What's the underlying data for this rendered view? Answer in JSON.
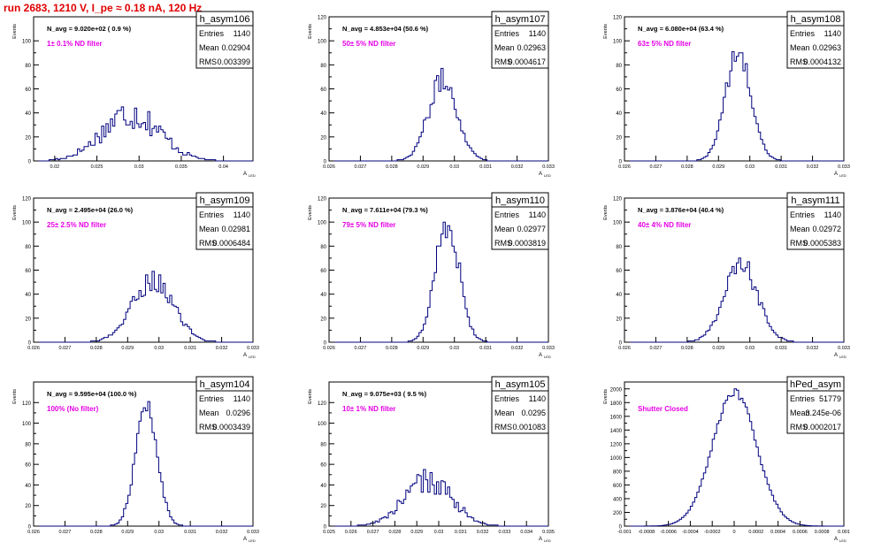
{
  "page": {
    "title": "run 2683,  1210 V, I_pe ≈ 0.18 nA, 120 Hz"
  },
  "stats_labels": {
    "entries": "Entries",
    "mean": "Mean",
    "rms": "RMS"
  },
  "colors": {
    "title": "#e00000",
    "annotation": "#e600e6",
    "histogram": "#00007f",
    "axis": "#000000"
  },
  "chart_data": [
    {
      "type": "histogram",
      "name": "h_asym106",
      "navg": "N_avg = 9.020e+02 ( 0.9 %)",
      "annotation": "1± 0.1% ND filter",
      "ylabel": "Events",
      "xlabel": "A",
      "xlabel_sub": "LED",
      "xlim": [
        0.0175,
        0.0435
      ],
      "ylim": [
        0,
        120
      ],
      "yticks": [
        "0",
        "20",
        "40",
        "60",
        "80",
        "100"
      ],
      "xticks": [
        "0.02",
        "0.025",
        "0.03",
        "0.035",
        "0.04"
      ],
      "ytick_vals": [
        0,
        20,
        40,
        60,
        80,
        100
      ],
      "xtick_vals": [
        0.02,
        0.025,
        0.03,
        0.035,
        0.04
      ],
      "stats": {
        "entries": "1140",
        "mean": "0.02904",
        "rms": "0.003399"
      },
      "mean": 0.02904,
      "rms": 0.003399,
      "peak": 40,
      "entries": 1140,
      "noise": 0.35
    },
    {
      "type": "histogram",
      "name": "h_asym107",
      "navg": "N_avg = 4.853e+04 (50.6 %)",
      "annotation": "50± 5% ND filter",
      "ylabel": "Events",
      "xlabel": "A",
      "xlabel_sub": "LED",
      "xlim": [
        0.026,
        0.033
      ],
      "ylim": [
        0,
        120
      ],
      "yticks": [
        "0",
        "20",
        "40",
        "60",
        "80",
        "100",
        "120"
      ],
      "xticks": [
        "0.026",
        "0.027",
        "0.028",
        "0.029",
        "0.03",
        "0.031",
        "0.032",
        "0.033"
      ],
      "ytick_vals": [
        0,
        20,
        40,
        60,
        80,
        100,
        120
      ],
      "xtick_vals": [
        0.026,
        0.027,
        0.028,
        0.029,
        0.03,
        0.031,
        0.032,
        0.033
      ],
      "stats": {
        "entries": "1140",
        "mean": "0.02963",
        "rms": "0.0004617"
      },
      "mean": 0.02963,
      "rms": 0.0004617,
      "peak": 67,
      "entries": 1140,
      "noise": 0.15
    },
    {
      "type": "histogram",
      "name": "h_asym108",
      "navg": "N_avg = 6.080e+04 (63.4 %)",
      "annotation": "63± 5% ND filter",
      "ylabel": "Events",
      "xlabel": "A",
      "xlabel_sub": "LED",
      "xlim": [
        0.026,
        0.033
      ],
      "ylim": [
        0,
        120
      ],
      "yticks": [
        "0",
        "20",
        "40",
        "60",
        "80",
        "100",
        "120"
      ],
      "xticks": [
        "0.026",
        "0.027",
        "0.028",
        "0.029",
        "0.03",
        "0.031",
        "0.032",
        "0.033"
      ],
      "ytick_vals": [
        0,
        20,
        40,
        60,
        80,
        100,
        120
      ],
      "xtick_vals": [
        0.026,
        0.027,
        0.028,
        0.029,
        0.03,
        0.031,
        0.032,
        0.033
      ],
      "stats": {
        "entries": "1140",
        "mean": "0.02963",
        "rms": "0.0004132"
      },
      "mean": 0.02963,
      "rms": 0.0004132,
      "peak": 89,
      "entries": 1140,
      "noise": 0.12
    },
    {
      "type": "histogram",
      "name": "h_asym109",
      "navg": "N_avg = 2.495e+04 (26.0 %)",
      "annotation": "25± 2.5% ND filter",
      "ylabel": "Events",
      "xlabel": "A",
      "xlabel_sub": "LED",
      "xlim": [
        0.026,
        0.033
      ],
      "ylim": [
        0,
        120
      ],
      "yticks": [
        "0",
        "20",
        "40",
        "60",
        "80",
        "100",
        "120"
      ],
      "xticks": [
        "0.026",
        "0.027",
        "0.028",
        "0.029",
        "0.03",
        "0.031",
        "0.032",
        "0.033"
      ],
      "ytick_vals": [
        0,
        20,
        40,
        60,
        80,
        100,
        120
      ],
      "xtick_vals": [
        0.026,
        0.027,
        0.028,
        0.029,
        0.03,
        0.031,
        0.032,
        0.033
      ],
      "stats": {
        "entries": "1140",
        "mean": "0.02981",
        "rms": "0.0006484"
      },
      "mean": 0.02981,
      "rms": 0.0006484,
      "peak": 52,
      "entries": 1140,
      "noise": 0.18
    },
    {
      "type": "histogram",
      "name": "h_asym110",
      "navg": "N_avg = 7.611e+04 (79.3 %)",
      "annotation": "79± 5% ND filter",
      "ylabel": "Events",
      "xlabel": "A",
      "xlabel_sub": "LED",
      "xlim": [
        0.026,
        0.033
      ],
      "ylim": [
        0,
        120
      ],
      "yticks": [
        "0",
        "20",
        "40",
        "60",
        "80",
        "100",
        "120"
      ],
      "xticks": [
        "0.026",
        "0.027",
        "0.028",
        "0.029",
        "0.03",
        "0.031",
        "0.032",
        "0.033"
      ],
      "ytick_vals": [
        0,
        20,
        40,
        60,
        80,
        100,
        120
      ],
      "xtick_vals": [
        0.026,
        0.027,
        0.028,
        0.029,
        0.03,
        0.031,
        0.032,
        0.033
      ],
      "stats": {
        "entries": "1140",
        "mean": "0.02977",
        "rms": "0.0003819"
      },
      "mean": 0.02977,
      "rms": 0.0003819,
      "peak": 100,
      "entries": 1140,
      "noise": 0.14
    },
    {
      "type": "histogram",
      "name": "h_asym111",
      "navg": "N_avg = 3.876e+04 (40.4 %)",
      "annotation": "40± 4% ND filter",
      "ylabel": "Events",
      "xlabel": "A",
      "xlabel_sub": "LED",
      "xlim": [
        0.026,
        0.033
      ],
      "ylim": [
        0,
        120
      ],
      "yticks": [
        "0",
        "20",
        "40",
        "60",
        "80",
        "100",
        "120"
      ],
      "xticks": [
        "0.026",
        "0.027",
        "0.028",
        "0.029",
        "0.03",
        "0.031",
        "0.032",
        "0.033"
      ],
      "ytick_vals": [
        0,
        20,
        40,
        60,
        80,
        100,
        120
      ],
      "xtick_vals": [
        0.026,
        0.027,
        0.028,
        0.029,
        0.03,
        0.031,
        0.032,
        0.033
      ],
      "stats": {
        "entries": "1140",
        "mean": "0.02972",
        "rms": "0.0005383"
      },
      "mean": 0.02972,
      "rms": 0.0005383,
      "peak": 64,
      "entries": 1140,
      "noise": 0.15
    },
    {
      "type": "histogram",
      "name": "h_asym104",
      "navg": "N_avg = 9.595e+04 (100.0 %)",
      "annotation": "100% (No filter)",
      "ylabel": "Events",
      "xlabel": "A",
      "xlabel_sub": "LED",
      "xlim": [
        0.026,
        0.033
      ],
      "ylim": [
        0,
        140
      ],
      "yticks": [
        "0",
        "20",
        "40",
        "60",
        "80",
        "100",
        "120"
      ],
      "xticks": [
        "0.026",
        "0.027",
        "0.028",
        "0.029",
        "0.03",
        "0.031",
        "0.032",
        "0.033"
      ],
      "ytick_vals": [
        0,
        20,
        40,
        60,
        80,
        100,
        120
      ],
      "xtick_vals": [
        0.026,
        0.027,
        0.028,
        0.029,
        0.03,
        0.031,
        0.032,
        0.033
      ],
      "stats": {
        "entries": "1140",
        "mean": "0.0296",
        "rms": "0.0003439"
      },
      "mean": 0.0296,
      "rms": 0.0003439,
      "peak": 117,
      "entries": 1140,
      "noise": 0.1
    },
    {
      "type": "histogram",
      "name": "h_asym105",
      "navg": "N_avg = 9.075e+03 ( 9.5 %)",
      "annotation": "10± 1% ND filter",
      "ylabel": "Events",
      "xlabel": "A",
      "xlabel_sub": "LED",
      "xlim": [
        0.025,
        0.035
      ],
      "ylim": [
        0,
        140
      ],
      "yticks": [
        "0",
        "20",
        "40",
        "60",
        "80",
        "100",
        "120"
      ],
      "xticks": [
        "0.025",
        "0.026",
        "0.027",
        "0.028",
        "0.029",
        "0.03",
        "0.031",
        "0.032",
        "0.033",
        "0.034",
        "0.035"
      ],
      "ytick_vals": [
        0,
        20,
        40,
        60,
        80,
        100,
        120
      ],
      "xtick_vals": [
        0.025,
        0.026,
        0.027,
        0.028,
        0.029,
        0.03,
        0.031,
        0.032,
        0.033,
        0.034,
        0.035
      ],
      "stats": {
        "entries": "1140",
        "mean": "0.0295",
        "rms": "0.001083"
      },
      "mean": 0.0295,
      "rms": 0.001083,
      "peak": 44,
      "entries": 1140,
      "noise": 0.28
    },
    {
      "type": "histogram",
      "name": "hPed_asym",
      "navg": "",
      "annotation": "Shutter Closed",
      "ylabel": "Events",
      "xlabel": "A",
      "xlabel_sub": "LED",
      "xlim": [
        -0.001,
        0.001
      ],
      "ylim": [
        0,
        2100
      ],
      "yticks": [
        "0",
        "200",
        "400",
        "600",
        "800",
        "1000",
        "1200",
        "1400",
        "1600",
        "1800",
        "2000"
      ],
      "xticks": [
        "-0.001",
        "-0.0008",
        "-0.0006",
        "-0.0004",
        "-0.0002",
        "0",
        "0.0002",
        "0.0004",
        "0.0006",
        "0.0008",
        "0.001"
      ],
      "ytick_vals": [
        0,
        200,
        400,
        600,
        800,
        1000,
        1200,
        1400,
        1600,
        1800,
        2000
      ],
      "xtick_vals": [
        -0.001,
        -0.0008,
        -0.0006,
        -0.0004,
        -0.0002,
        0,
        0.0002,
        0.0004,
        0.0006,
        0.0008,
        0.001
      ],
      "stats": {
        "entries": "51779",
        "mean": "3.245e-06",
        "rms": "0.0002017"
      },
      "mean": 3.245e-06,
      "rms": 0.0002017,
      "peak": 1950,
      "entries": 51779,
      "noise": 0.03
    }
  ]
}
